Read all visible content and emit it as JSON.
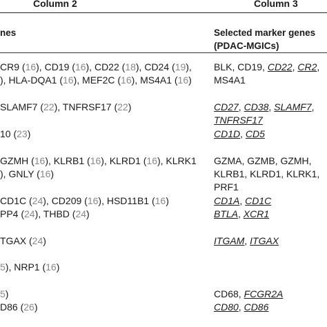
{
  "header": {
    "col2": "Column 2",
    "col3": "Column 3"
  },
  "subheader": {
    "col2": "nes",
    "col3_line1": "Selected marker genes",
    "col3_line2": "(PDAC-MGICs)"
  },
  "rows": [
    {
      "top": 88,
      "col2": [
        [
          {
            "t": "CR9 ("
          },
          {
            "t": "16",
            "r": 1
          },
          {
            "t": "), CD19 ("
          },
          {
            "t": "16",
            "r": 1
          },
          {
            "t": "), CD22 ("
          },
          {
            "t": "18",
            "r": 1
          },
          {
            "t": "), CD24 ("
          },
          {
            "t": "19",
            "r": 1
          },
          {
            "t": "),"
          }
        ],
        [
          {
            "t": "), HLA-DQA1 ("
          },
          {
            "t": "16",
            "r": 1
          },
          {
            "t": "), MEF2C ("
          },
          {
            "t": "16",
            "r": 1
          },
          {
            "t": "), MS4A1 ("
          },
          {
            "t": "16",
            "r": 1
          },
          {
            "t": ")"
          }
        ]
      ],
      "col3": [
        [
          {
            "t": "BLK, CD19, "
          },
          {
            "t": "CD22",
            "u": 1
          },
          {
            "t": ", "
          },
          {
            "t": "CR2",
            "u": 1
          },
          {
            "t": ","
          }
        ],
        [
          {
            "t": "MS4A1"
          }
        ]
      ]
    },
    {
      "top": 146,
      "col2": [
        [
          {
            "t": "SLAMF7 ("
          },
          {
            "t": "22",
            "r": 1
          },
          {
            "t": "), TNFRSF17 ("
          },
          {
            "t": "22",
            "r": 1
          },
          {
            "t": ")"
          }
        ]
      ],
      "col3": [
        [
          {
            "t": "CD27",
            "u": 1
          },
          {
            "t": ", "
          },
          {
            "t": "CD38",
            "u": 1
          },
          {
            "t": ", "
          },
          {
            "t": "SLAMF7",
            "u": 1
          },
          {
            "t": ","
          }
        ],
        [
          {
            "t": "TNFRSF17",
            "u": 1
          }
        ]
      ]
    },
    {
      "top": 185,
      "col2": [
        [
          {
            "t": "10 ("
          },
          {
            "t": "23",
            "r": 1
          },
          {
            "t": ")"
          }
        ]
      ],
      "col3": [
        [
          {
            "t": "CD1D",
            "u": 1
          },
          {
            "t": ", "
          },
          {
            "t": "CD5",
            "u": 1
          }
        ]
      ]
    },
    {
      "top": 224,
      "col2": [
        [
          {
            "t": "GZMH ("
          },
          {
            "t": "16",
            "r": 1
          },
          {
            "t": "), KLRB1 ("
          },
          {
            "t": "16",
            "r": 1
          },
          {
            "t": "), KLRD1 ("
          },
          {
            "t": "16",
            "r": 1
          },
          {
            "t": "), KLRK1"
          }
        ],
        [
          {
            "t": "), GNLY ("
          },
          {
            "t": "16",
            "r": 1
          },
          {
            "t": ")"
          }
        ]
      ],
      "col3": [
        [
          {
            "t": "GZMA, GZMB, GZMH,"
          }
        ],
        [
          {
            "t": "KLRB1, KLRD1, KLRK1,"
          }
        ],
        [
          {
            "t": "PRF1"
          }
        ]
      ]
    },
    {
      "top": 282,
      "col2": [
        [
          {
            "t": "CD1C ("
          },
          {
            "t": "24",
            "r": 1
          },
          {
            "t": "), CD209 ("
          },
          {
            "t": "16",
            "r": 1
          },
          {
            "t": "), HSD11B1 ("
          },
          {
            "t": "16",
            "r": 1
          },
          {
            "t": ")"
          }
        ],
        [
          {
            "t": "PP4 ("
          },
          {
            "t": "24",
            "r": 1
          },
          {
            "t": "), THBD ("
          },
          {
            "t": "24",
            "r": 1
          },
          {
            "t": ")"
          }
        ]
      ],
      "col3": [
        [
          {
            "t": "CD1A",
            "u": 1
          },
          {
            "t": ", "
          },
          {
            "t": "CD1C",
            "u": 1
          }
        ],
        [
          {
            "t": "BTLA",
            "u": 1
          },
          {
            "t": ", "
          },
          {
            "t": "XCR1",
            "u": 1
          }
        ]
      ]
    },
    {
      "top": 340,
      "col2": [
        [
          {
            "t": "TGAX ("
          },
          {
            "t": "24",
            "r": 1
          },
          {
            "t": ")"
          }
        ]
      ],
      "col3": [
        [
          {
            "t": "ITGAM",
            "u": 1
          },
          {
            "t": ", "
          },
          {
            "t": "ITGAX",
            "u": 1
          }
        ]
      ]
    },
    {
      "top": 378,
      "col2": [
        [
          {
            "t": "5",
            "r": 1
          },
          {
            "t": "), NRP1 ("
          },
          {
            "t": "16",
            "r": 1
          },
          {
            "t": ")"
          }
        ]
      ],
      "col3": []
    },
    {
      "top": 417,
      "col2": [
        [
          {
            "t": "5",
            "r": 1
          },
          {
            "t": ")"
          }
        ],
        [
          {
            "t": "D86 ("
          },
          {
            "t": "26",
            "r": 1
          },
          {
            "t": ")"
          }
        ]
      ],
      "col3": [
        [
          {
            "t": "CD68, "
          },
          {
            "t": "FCGR2A",
            "u": 1
          }
        ],
        [
          {
            "t": "CD80",
            "u": 1
          },
          {
            "t": ", "
          },
          {
            "t": "CD86",
            "u": 1
          }
        ]
      ]
    }
  ]
}
